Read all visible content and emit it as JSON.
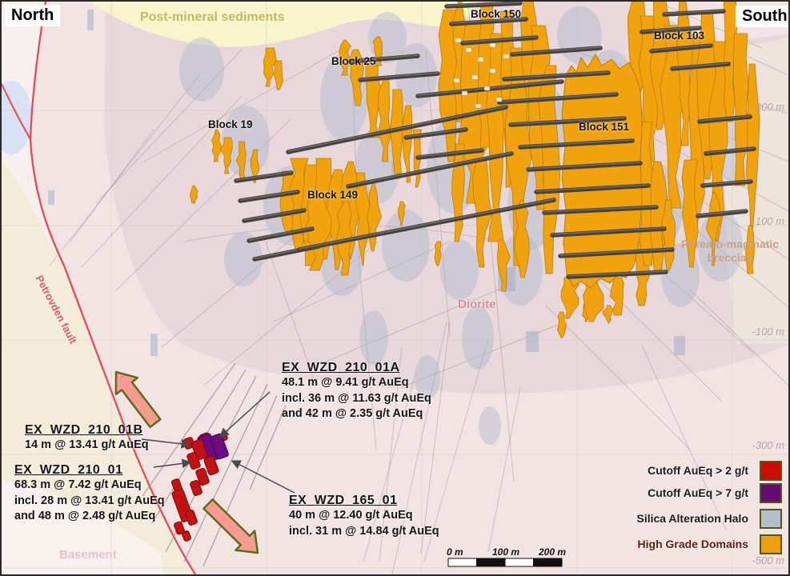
{
  "orientation": {
    "north": "North",
    "south": "South"
  },
  "geology": {
    "post_mineral_sediments": "Post-mineral sediments",
    "phreato_line1": "Phreato-magmatic",
    "phreato_line2": "breccias",
    "diorite": "Diorite",
    "petrovden_fault": "Petrovden fault",
    "basement": "Basement"
  },
  "blocks": [
    {
      "label": "Block 150"
    },
    {
      "label": "Block 25"
    },
    {
      "label": "Block 103"
    },
    {
      "label": "Block 19"
    },
    {
      "label": "Block 151"
    },
    {
      "label": "Block 149"
    }
  ],
  "elevations": [
    "300 m",
    "100 m",
    "-100 m",
    "-300 m",
    "-500 m"
  ],
  "drill_annotations": [
    {
      "title": "EX_WZD_210_01A",
      "lines": [
        "48.1 m @ 9.41 g/t AuEq",
        "incl. 36 m @ 11.63 g/t AuEq",
        "and 42 m @ 2.35 g/t AuEq"
      ]
    },
    {
      "title": "EX_WZD_210_01B",
      "lines": [
        "14 m @ 13.41 g/t AuEq"
      ]
    },
    {
      "title": "EX_WZD_210_01",
      "lines": [
        "68.3 m @ 7.42 g/t AuEq",
        "incl. 28 m @ 13.41 g/t AuEq",
        "and 48 m @ 2.48 g/t AuEq"
      ]
    },
    {
      "title": "EX_WZD_165_01",
      "lines": [
        "40 m @ 12.40 g/t AuEq",
        "incl. 31 m @ 14.84 g/t AuEq"
      ]
    }
  ],
  "legend": {
    "items": [
      {
        "label": "Cutoff AuEq > 2 g/t",
        "color": "#cc0c04"
      },
      {
        "label": "Cutoff  AuEq > 7 g/t",
        "color": "#650b72"
      },
      {
        "label": "Silica Alteration Halo",
        "color": "#b7bfcc"
      },
      {
        "label": "High Grade Domains",
        "color": "#ee9f0f"
      }
    ]
  },
  "scale_bar": {
    "ticks": [
      "0 m",
      "100 m",
      "200 m"
    ]
  },
  "colors": {
    "fault_red": "#e84a52",
    "high_grade": "#f0a30d",
    "silica": "#b0bccf",
    "cutoff2": "#c41111",
    "cutoff7": "#6b0d7d",
    "movement_arrow_fill": "#f79a90",
    "movement_arrow_stroke": "#5e6b1f",
    "sediments_text": "#c5b957",
    "breccia_text": "#c9a284",
    "diorite_text": "#d9919b",
    "fault_text": "#e05a68",
    "basement_text": "#ebbfc9"
  }
}
